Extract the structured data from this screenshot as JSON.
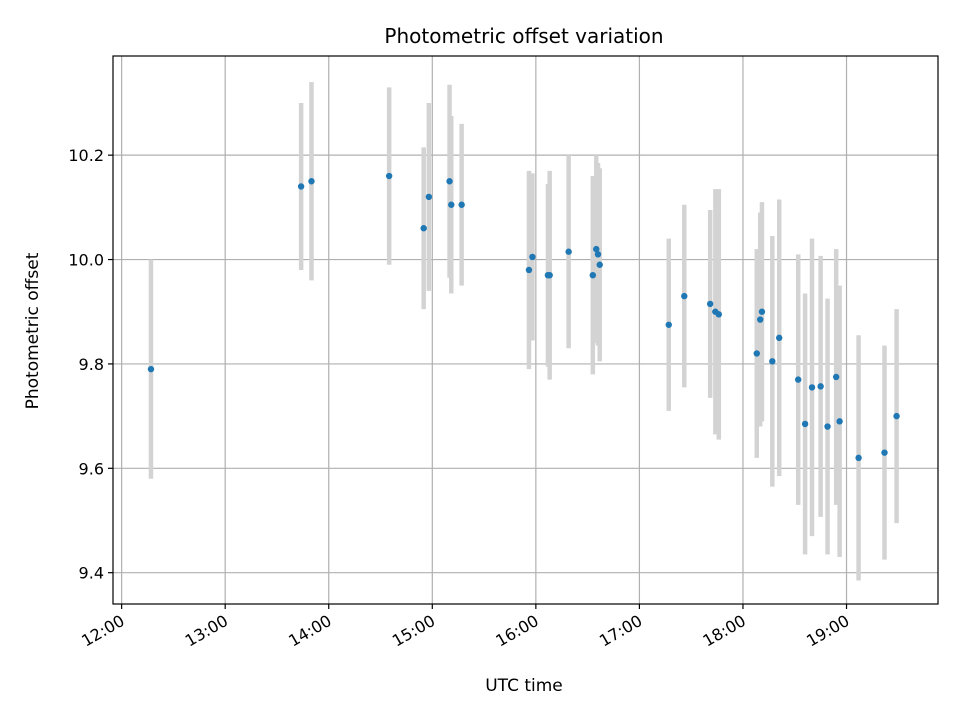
{
  "chart_data": {
    "type": "scatter",
    "title": "Photometric offset variation",
    "xlabel": "UTC time",
    "ylabel": "Photometric offset",
    "x_axis": "time",
    "xlim": [
      "11:55",
      "19:53"
    ],
    "ylim": [
      9.34,
      10.39
    ],
    "xticks": [
      "12:00",
      "13:00",
      "14:00",
      "15:00",
      "16:00",
      "17:00",
      "18:00",
      "19:00"
    ],
    "yticks": [
      9.4,
      9.6,
      9.8,
      10.0,
      10.2
    ],
    "grid": true,
    "colors": {
      "points": "#1f77b4",
      "errorbars": "#d3d3d3",
      "grid": "#b0b0b0"
    },
    "series": [
      {
        "points": [
          {
            "x": "12:17",
            "y": 9.79,
            "err": 0.21
          },
          {
            "x": "13:44",
            "y": 10.14,
            "err": 0.16
          },
          {
            "x": "13:50",
            "y": 10.15,
            "err": 0.19
          },
          {
            "x": "14:35",
            "y": 10.16,
            "err": 0.17
          },
          {
            "x": "14:55",
            "y": 10.06,
            "err": 0.155
          },
          {
            "x": "14:58",
            "y": 10.12,
            "err": 0.18
          },
          {
            "x": "15:10",
            "y": 10.15,
            "err": 0.185
          },
          {
            "x": "15:11",
            "y": 10.105,
            "err": 0.17
          },
          {
            "x": "15:17",
            "y": 10.105,
            "err": 0.155
          },
          {
            "x": "15:56",
            "y": 9.98,
            "err": 0.19
          },
          {
            "x": "15:58",
            "y": 10.005,
            "err": 0.16
          },
          {
            "x": "16:07",
            "y": 9.97,
            "err": 0.175
          },
          {
            "x": "16:08",
            "y": 9.97,
            "err": 0.2
          },
          {
            "x": "16:19",
            "y": 10.015,
            "err": 0.185
          },
          {
            "x": "16:33",
            "y": 9.97,
            "err": 0.19
          },
          {
            "x": "16:35",
            "y": 10.02,
            "err": 0.18
          },
          {
            "x": "16:36",
            "y": 10.01,
            "err": 0.175
          },
          {
            "x": "16:37",
            "y": 9.99,
            "err": 0.185
          },
          {
            "x": "17:17",
            "y": 9.875,
            "err": 0.165
          },
          {
            "x": "17:26",
            "y": 9.93,
            "err": 0.175
          },
          {
            "x": "17:41",
            "y": 9.915,
            "err": 0.18
          },
          {
            "x": "17:44",
            "y": 9.9,
            "err": 0.235
          },
          {
            "x": "17:46",
            "y": 9.895,
            "err": 0.24
          },
          {
            "x": "18:08",
            "y": 9.82,
            "err": 0.2
          },
          {
            "x": "18:10",
            "y": 9.885,
            "err": 0.205
          },
          {
            "x": "18:11",
            "y": 9.9,
            "err": 0.21
          },
          {
            "x": "18:17",
            "y": 9.805,
            "err": 0.24
          },
          {
            "x": "18:21",
            "y": 9.85,
            "err": 0.265
          },
          {
            "x": "18:32",
            "y": 9.77,
            "err": 0.24
          },
          {
            "x": "18:36",
            "y": 9.685,
            "err": 0.25
          },
          {
            "x": "18:40",
            "y": 9.755,
            "err": 0.285
          },
          {
            "x": "18:45",
            "y": 9.757,
            "err": 0.25
          },
          {
            "x": "18:49",
            "y": 9.68,
            "err": 0.245
          },
          {
            "x": "18:54",
            "y": 9.775,
            "err": 0.245
          },
          {
            "x": "18:56",
            "y": 9.69,
            "err": 0.26
          },
          {
            "x": "19:07",
            "y": 9.62,
            "err": 0.235
          },
          {
            "x": "19:22",
            "y": 9.63,
            "err": 0.205
          },
          {
            "x": "19:29",
            "y": 9.7,
            "err": 0.205
          }
        ]
      }
    ]
  }
}
